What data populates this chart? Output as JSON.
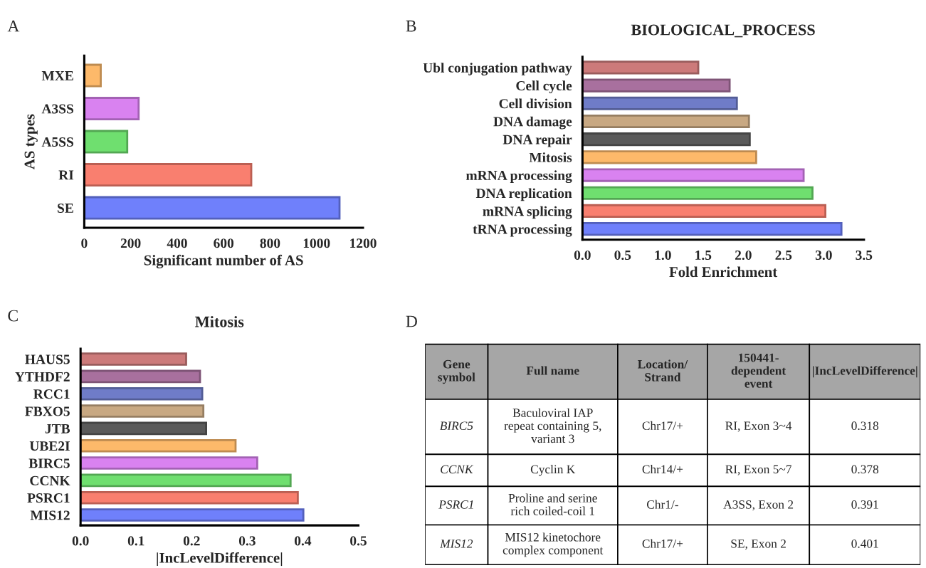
{
  "chart_data": [
    {
      "type": "bar",
      "orientation": "horizontal",
      "annotations": [
        "A"
      ],
      "ylabel": "AS types",
      "xlabel": "Significant number of AS",
      "categories": [
        "MXE",
        "A3SS",
        "A5SS",
        "RI",
        "SE"
      ],
      "values": [
        71,
        234,
        185,
        719,
        1099
      ],
      "colors": [
        "#fdb96a",
        "#d982f0",
        "#6fdf6f",
        "#f97f6f",
        "#6f80fb"
      ],
      "xlim": [
        0,
        1200
      ],
      "xticks": [
        0,
        200,
        400,
        600,
        800,
        1000,
        1200
      ]
    },
    {
      "type": "bar",
      "orientation": "horizontal",
      "annotations": [
        "B"
      ],
      "title": "BIOLOGICAL_PROCESS",
      "xlabel": "Fold Enrichment",
      "categories": [
        "Ubl conjugation pathway",
        "Cell cycle",
        "Cell division",
        "DNA damage",
        "DNA repair",
        "Mitosis",
        "mRNA processing",
        "DNA replication",
        "mRNA splicing",
        "tRNA processing"
      ],
      "values": [
        1.44,
        1.83,
        1.92,
        2.07,
        2.08,
        2.16,
        2.75,
        2.86,
        3.02,
        3.22
      ],
      "colors": [
        "#cc7a7a",
        "#a8709e",
        "#6f7cc8",
        "#c8a882",
        "#5a5a5a",
        "#fdb96a",
        "#d982f0",
        "#6fdf6f",
        "#f97f6f",
        "#6f80fb"
      ],
      "xlim": [
        0,
        3.5
      ],
      "xticks": [
        {
          "value": 0,
          "label": "0.0"
        },
        {
          "value": 0.5,
          "label": "0.5"
        },
        {
          "value": 1,
          "label": "1.0"
        },
        {
          "value": 1.5,
          "label": "1.5"
        },
        {
          "value": 2,
          "label": "2.0"
        },
        {
          "value": 2.5,
          "label": "2.5"
        },
        {
          "value": 3,
          "label": "3.0"
        },
        {
          "value": 3.5,
          "label": "3.5"
        }
      ]
    },
    {
      "type": "bar",
      "orientation": "horizontal",
      "annotations": [
        "C"
      ],
      "title": "Mitosis",
      "xlabel": "|IncLevelDifference|",
      "categories": [
        "HAUS5",
        "YTHDF2",
        "RCC1",
        "FBXO5",
        "JTB",
        "UBE2I",
        "BIRC5",
        "CCNK",
        "PSRC1",
        "MIS12"
      ],
      "values": [
        0.19,
        0.215,
        0.219,
        0.221,
        0.226,
        0.279,
        0.318,
        0.378,
        0.391,
        0.401
      ],
      "colors": [
        "#cc7a7a",
        "#a8709e",
        "#6f7cc8",
        "#c8a882",
        "#5a5a5a",
        "#fdb96a",
        "#d982f0",
        "#6fdf6f",
        "#f97f6f",
        "#6f80fb"
      ],
      "xlim": [
        0,
        0.5
      ],
      "xticks": [
        {
          "value": 0,
          "label": "0.0"
        },
        {
          "value": 0.1,
          "label": "0.1"
        },
        {
          "value": 0.2,
          "label": "0.2"
        },
        {
          "value": 0.3,
          "label": "0.3"
        },
        {
          "value": 0.4,
          "label": "0.4"
        },
        {
          "value": 0.5,
          "label": "0.5"
        }
      ]
    },
    {
      "type": "other",
      "annotations": [
        "D"
      ],
      "categories": [
        "Gene\nsymbol",
        "Full name",
        "Location/\nStrand",
        "150441-\ndependent\nevent",
        "|IncLevelDifference|"
      ],
      "cell_labels": [
        [
          "BIRC5",
          "Baculoviral IAP\nrepeat containing 5,\nvariant 3",
          "Chr17/+",
          "RI, Exon 3~4",
          "0.318"
        ],
        [
          "CCNK",
          "Cyclin K",
          "Chr14/+",
          "RI, Exon 5~7",
          "0.378"
        ],
        [
          "PSRC1",
          "Proline and serine\nrich coiled-coil 1",
          "Chr1/-",
          "A3SS, Exon 2",
          "0.391"
        ],
        [
          "MIS12",
          "MIS12 kinetochore\ncomplex component",
          "Chr17/+",
          "SE, Exon 2",
          "0.401"
        ]
      ]
    }
  ]
}
